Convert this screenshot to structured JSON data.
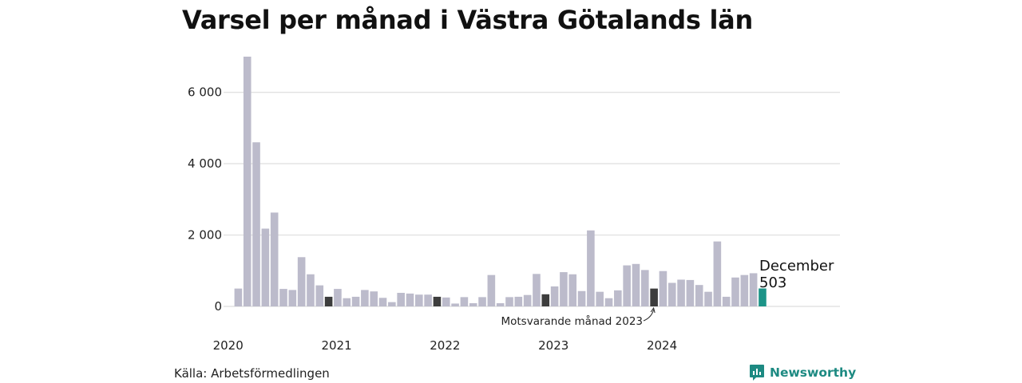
{
  "chart_data": {
    "type": "bar",
    "title": "Varsel per månad i Västra Götalands län",
    "ylim": [
      0,
      7000
    ],
    "y_ticks": [
      {
        "value": 0,
        "label": "0"
      },
      {
        "value": 2000,
        "label": "2 000"
      },
      {
        "value": 4000,
        "label": "4 000"
      },
      {
        "value": 6000,
        "label": "6 000"
      }
    ],
    "x_ticks": [
      {
        "index": 0,
        "label": "2020"
      },
      {
        "index": 12,
        "label": "2021"
      },
      {
        "index": 24,
        "label": "2022"
      },
      {
        "index": 36,
        "label": "2023"
      },
      {
        "index": 48,
        "label": "2024"
      }
    ],
    "grid": true,
    "values": [
      500,
      7000,
      4600,
      2180,
      2630,
      490,
      460,
      1380,
      900,
      590,
      270,
      490,
      230,
      270,
      460,
      420,
      240,
      120,
      380,
      360,
      330,
      330,
      270,
      250,
      80,
      260,
      90,
      260,
      880,
      90,
      260,
      270,
      320,
      910,
      340,
      560,
      960,
      900,
      430,
      2130,
      410,
      230,
      450,
      1150,
      1190,
      1020,
      500,
      990,
      660,
      750,
      740,
      600,
      410,
      1820,
      270,
      810,
      880,
      930,
      503
    ],
    "highlight_comparison_indices": [
      10,
      22,
      34,
      46
    ],
    "current_index": 58,
    "colors": {
      "bar": "#bcbbcb",
      "comparison": "#3d3d3d",
      "current": "#1c9488",
      "grid": "#dedede"
    },
    "callout": {
      "month": "December",
      "value": "503"
    },
    "annotation": "Motsvarande månad 2023"
  },
  "source": "Källa: Arbetsförmedlingen",
  "brand": {
    "name": "Newsworthy",
    "icon": "newsworthy-logo-icon"
  }
}
